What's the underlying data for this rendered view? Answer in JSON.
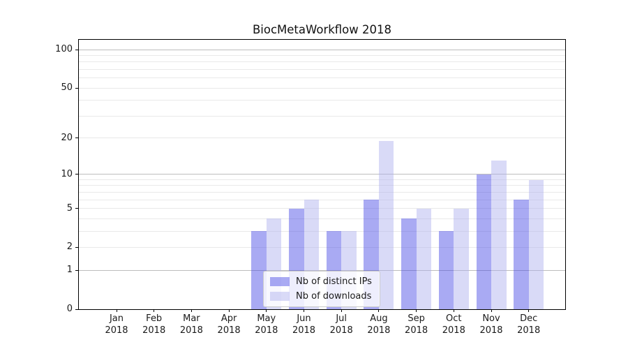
{
  "title": "BiocMetaWorkflow 2018",
  "legend": {
    "items": [
      {
        "label": "Nb of distinct IPs",
        "color": "#a9aaf3"
      },
      {
        "label": "Nb of downloads",
        "color": "#d9daf7"
      }
    ],
    "position": "lower-center-inside"
  },
  "chart_data": {
    "type": "bar",
    "title": "BiocMetaWorkflow 2018",
    "categories": [
      "Jan 2018",
      "Feb 2018",
      "Mar 2018",
      "Apr 2018",
      "May 2018",
      "Jun 2018",
      "Jul 2018",
      "Aug 2018",
      "Sep 2018",
      "Oct 2018",
      "Nov 2018",
      "Dec 2018"
    ],
    "series": [
      {
        "name": "Nb of distinct IPs",
        "color": "#a9aaf3",
        "values": [
          0,
          0,
          0,
          0,
          3,
          5,
          3,
          6,
          4,
          3,
          10,
          6
        ]
      },
      {
        "name": "Nb of downloads",
        "color": "#d9daf7",
        "values": [
          0,
          0,
          0,
          0,
          4,
          6,
          3,
          19,
          5,
          5,
          13,
          9
        ]
      }
    ],
    "xlabel": "",
    "ylabel": "",
    "yscale": "log1p",
    "ylim": [
      0,
      118
    ],
    "y_tick_labels": [
      0,
      1,
      2,
      5,
      10,
      20,
      50,
      100
    ],
    "y_major_gridlines": [
      1,
      10,
      100
    ],
    "y_minor_gridlines": [
      2,
      3,
      4,
      5,
      6,
      7,
      8,
      9,
      20,
      30,
      40,
      50,
      60,
      70,
      80,
      90
    ],
    "grid": true,
    "legend_position": "lower center (inside axes)"
  }
}
